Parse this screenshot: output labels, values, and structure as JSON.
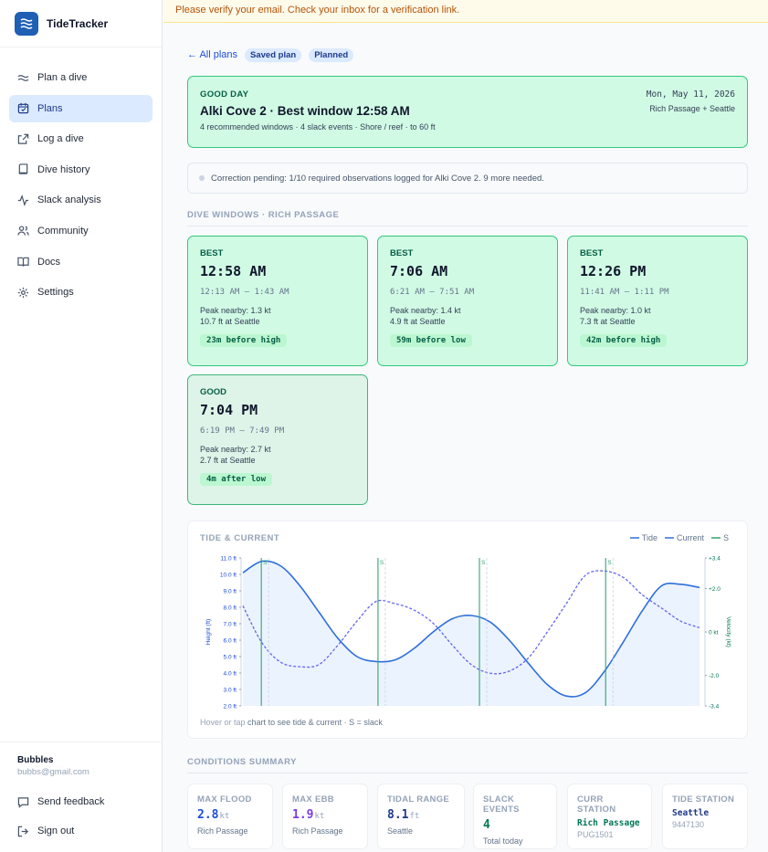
{
  "brand": {
    "name": "TideTracker"
  },
  "nav": [
    {
      "label": "Plan a dive",
      "icon": "waves-icon"
    },
    {
      "label": "Plans",
      "icon": "calendar-icon",
      "active": true
    },
    {
      "label": "Log a dive",
      "icon": "external-link-icon"
    },
    {
      "label": "Dive history",
      "icon": "book-icon"
    },
    {
      "label": "Slack analysis",
      "icon": "activity-icon"
    },
    {
      "label": "Community",
      "icon": "users-icon"
    },
    {
      "label": "Docs",
      "icon": "open-book-icon"
    },
    {
      "label": "Settings",
      "icon": "gear-icon"
    }
  ],
  "user": {
    "name": "Bubbles",
    "email": "bubbs@gmail.com"
  },
  "footer": {
    "feedback": "Send feedback",
    "signout": "Sign out"
  },
  "banner": {
    "text": "Please verify your email. Check your inbox for a verification link."
  },
  "crumbs": {
    "back": "← All plans",
    "saved": "Saved plan",
    "planned": "Planned"
  },
  "day": {
    "label": "GOOD DAY",
    "title": "Alki Cove 2 · Best window 12:58 AM",
    "subtitle": "4 recommended windows · 4 slack events · Shore / reef · to 60 ft",
    "date": "Mon, May 11, 2026",
    "stations": "Rich Passage + Seattle"
  },
  "notice": {
    "text": "Correction pending: 1/10 required observations logged for Alki Cove 2. 9 more needed."
  },
  "windows_title": "DIVE WINDOWS · RICH PASSAGE",
  "windows": [
    {
      "label": "BEST",
      "time": "12:58 AM",
      "range": "12:13 AM – 1:43 AM",
      "peak": "Peak nearby: 1.3 kt",
      "height": "10.7 ft at Seattle",
      "tag": "23m before high"
    },
    {
      "label": "BEST",
      "time": "7:06 AM",
      "range": "6:21 AM – 7:51 AM",
      "peak": "Peak nearby: 1.4 kt",
      "height": "4.9 ft at Seattle",
      "tag": "59m before low"
    },
    {
      "label": "BEST",
      "time": "12:26 PM",
      "range": "11:41 AM – 1:11 PM",
      "peak": "Peak nearby: 1.0 kt",
      "height": "7.3 ft at Seattle",
      "tag": "42m before high"
    },
    {
      "label": "GOOD",
      "time": "7:04 PM",
      "range": "6:19 PM – 7:49 PM",
      "peak": "Peak nearby: 2.7 kt",
      "height": "2.7 ft at Seattle",
      "tag": "4m after low"
    }
  ],
  "chart": {
    "title": "TIDE & CURRENT",
    "legend": {
      "tide": "Tide",
      "current": "Current",
      "slack": "S"
    },
    "hint_light": "Hover or tap",
    "hint_dark": "chart",
    "hint_rest": "to see tide & current · S = slack",
    "ylabel_left": "Height (ft)",
    "ylabel_right": "Velocity (kt)"
  },
  "chart_data": {
    "type": "line",
    "title": "TIDE & CURRENT",
    "xlabel": "",
    "ylabel": "Height (ft)",
    "y2label": "Velocity (kt)",
    "ylim": [
      2.0,
      11.0
    ],
    "y2lim": [
      -3.4,
      3.4
    ],
    "y_ticks": [
      "11.0 ft",
      "10.0 ft",
      "9.0 ft",
      "8.0 ft",
      "7.0 ft",
      "6.0 ft",
      "5.0 ft",
      "4.0 ft",
      "3.0 ft",
      "2.0 ft"
    ],
    "y2_ticks": [
      "+3.4",
      "+2.0",
      "0 kt",
      "-2.0",
      "-3.4"
    ],
    "x": [
      0,
      1,
      2,
      3,
      4,
      5,
      6,
      7,
      8,
      9,
      10,
      11,
      12,
      13,
      14,
      15,
      16,
      17,
      18,
      19,
      20,
      21,
      22,
      23,
      24
    ],
    "series": [
      {
        "name": "Tide",
        "axis": "left",
        "values": [
          10.1,
          10.8,
          10.5,
          9.3,
          7.7,
          6.1,
          5.0,
          4.7,
          4.8,
          5.5,
          6.5,
          7.3,
          7.5,
          7.1,
          6.0,
          4.6,
          3.3,
          2.6,
          2.8,
          4.1,
          5.9,
          7.8,
          9.3,
          9.4,
          9.2
        ]
      },
      {
        "name": "Current",
        "axis": "right",
        "values": [
          1.2,
          -0.5,
          -1.4,
          -1.6,
          -1.5,
          -0.6,
          0.5,
          1.4,
          1.3,
          1.0,
          0.4,
          -0.6,
          -1.5,
          -1.9,
          -1.8,
          -1.2,
          0.0,
          1.3,
          2.6,
          2.8,
          2.5,
          1.7,
          1.1,
          0.5,
          0.2
        ]
      }
    ],
    "slack_times": [
      "12:58 AM",
      "7:06 AM",
      "12:26 PM",
      "7:04 PM"
    ]
  },
  "summary_title": "CONDITIONS SUMMARY",
  "stats": [
    {
      "label": "MAX FLOOD",
      "value": "2.8",
      "unit": "kt",
      "sub": "Rich Passage",
      "color": "#1d4ed8"
    },
    {
      "label": "MAX EBB",
      "value": "1.9",
      "unit": "kt",
      "sub": "Rich Passage",
      "color": "#7c3aed"
    },
    {
      "label": "TIDAL RANGE",
      "value": "8.1",
      "unit": "ft",
      "sub": "Seattle",
      "color": "#1e3a8a"
    },
    {
      "label": "SLACK EVENTS",
      "value": "4",
      "unit": "",
      "sub": "Total today",
      "color": "#047857"
    },
    {
      "label": "CURR STATION",
      "value": "Rich Passage",
      "sub": "PUG1501",
      "color": "#047857"
    },
    {
      "label": "TIDE STATION",
      "value": "Seattle",
      "sub": "9447130",
      "color": "#1e3a8a"
    }
  ]
}
